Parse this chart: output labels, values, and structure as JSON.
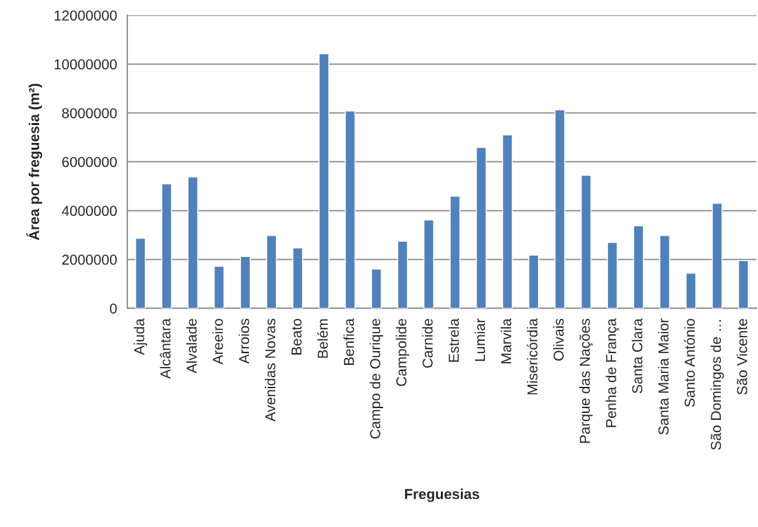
{
  "chart_data": {
    "type": "bar",
    "xlabel": "Freguesias",
    "ylabel": "Área por freguesia (m²)",
    "categories": [
      "Ajuda",
      "Alcântara",
      "Alvalade",
      "Areeiro",
      "Arroios",
      "Avenidas Novas",
      "Beato",
      "Belém",
      "Benfica",
      "Campo de Ourique",
      "Campolide",
      "Carnide",
      "Estrela",
      "Lumiar",
      "Marvila",
      "Misericórdia",
      "Olivais",
      "Parque das Nações",
      "Penha de França",
      "Santa Clara",
      "Santa Maria Maior",
      "Santo António",
      "São Domingos de …",
      "São Vicente"
    ],
    "values": [
      2870000,
      5100000,
      5380000,
      1720000,
      2120000,
      2980000,
      2470000,
      10420000,
      8080000,
      1610000,
      2750000,
      3620000,
      4590000,
      6590000,
      7100000,
      2180000,
      8130000,
      5450000,
      2700000,
      3380000,
      2980000,
      1440000,
      4300000,
      1950000
    ],
    "color": "#4f81bd",
    "ylim": [
      0,
      12000000
    ],
    "yticks": [
      0,
      2000000,
      4000000,
      6000000,
      8000000,
      10000000,
      12000000
    ],
    "grid": "y",
    "legend": false
  }
}
